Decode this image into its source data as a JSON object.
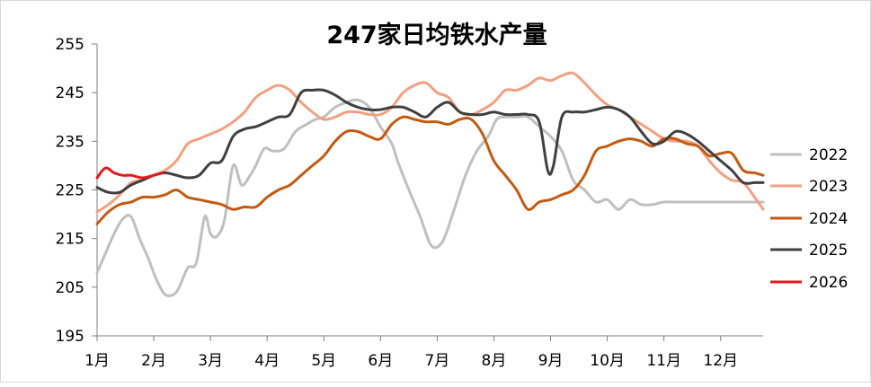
{
  "chart_data": {
    "type": "line",
    "title": "247家日均铁水产量",
    "xlabel": "",
    "ylabel": "",
    "ylim": [
      195,
      255
    ],
    "yticks": [
      195,
      205,
      215,
      225,
      235,
      245,
      255
    ],
    "xlim": [
      1,
      12.75
    ],
    "x_tick_values": [
      1,
      2,
      3,
      4,
      5,
      6,
      7,
      8,
      9,
      10,
      11,
      12
    ],
    "x_tick_labels": [
      "1月",
      "2月",
      "3月",
      "4月",
      "5月",
      "6月",
      "7月",
      "8月",
      "9月",
      "10月",
      "11月",
      "12月"
    ],
    "legend_position": "right",
    "grid": false,
    "series": [
      {
        "name": "2022",
        "color": "#bfbfbf",
        "x": [
          1.0,
          1.15,
          1.3,
          1.45,
          1.6,
          1.75,
          1.9,
          2.05,
          2.2,
          2.35,
          2.45,
          2.6,
          2.75,
          2.9,
          3.0,
          3.12,
          3.25,
          3.4,
          3.55,
          3.7,
          3.8,
          3.95,
          4.1,
          4.3,
          4.5,
          4.7,
          4.85,
          5.0,
          5.2,
          5.4,
          5.6,
          5.8,
          6.0,
          6.2,
          6.3,
          6.5,
          6.7,
          6.9,
          7.1,
          7.3,
          7.5,
          7.7,
          7.9,
          8.05,
          8.2,
          8.4,
          8.6,
          8.8,
          9.0,
          9.2,
          9.4,
          9.6,
          9.8,
          10.0,
          10.2,
          10.4,
          10.6,
          10.8,
          11.0,
          11.2,
          11.4,
          11.6,
          11.8,
          12.0,
          12.2,
          12.4,
          12.6,
          12.75
        ],
        "values": [
          208,
          212,
          216,
          219,
          219.5,
          215,
          211,
          206.5,
          203.5,
          203.5,
          205,
          209,
          210,
          219.5,
          216,
          215.5,
          219,
          230,
          226,
          228,
          230,
          233.5,
          233,
          233.5,
          237,
          238.5,
          239.5,
          240,
          242,
          243,
          243.5,
          242,
          238,
          234.5,
          231,
          225,
          219.5,
          213.5,
          214.5,
          221,
          228,
          233,
          236,
          239.5,
          240,
          240,
          240,
          238,
          236,
          233,
          227,
          225,
          222.5,
          223,
          221,
          223,
          222,
          222,
          222.5,
          222.5,
          222.5,
          222.5,
          222.5,
          222.5,
          222.5,
          222.5,
          222.5,
          222.5
        ]
      },
      {
        "name": "2023",
        "color": "#f4a080",
        "x": [
          1.0,
          1.2,
          1.4,
          1.6,
          1.8,
          2.0,
          2.2,
          2.4,
          2.6,
          2.8,
          3.0,
          3.2,
          3.4,
          3.6,
          3.8,
          4.0,
          4.2,
          4.4,
          4.6,
          4.8,
          5.0,
          5.2,
          5.4,
          5.6,
          5.8,
          6.0,
          6.2,
          6.4,
          6.6,
          6.8,
          7.0,
          7.2,
          7.4,
          7.6,
          7.8,
          8.0,
          8.2,
          8.4,
          8.6,
          8.8,
          9.0,
          9.2,
          9.4,
          9.6,
          9.8,
          10.0,
          10.2,
          10.4,
          10.6,
          10.8,
          11.0,
          11.2,
          11.4,
          11.6,
          11.8,
          12.0,
          12.2,
          12.4,
          12.6,
          12.75
        ],
        "values": [
          220.5,
          222,
          224,
          226.5,
          227,
          228,
          229,
          231,
          234.5,
          235.5,
          236.5,
          237.5,
          239,
          241,
          244,
          245.5,
          246.5,
          245.5,
          243,
          241,
          239.5,
          240,
          241,
          241,
          240.5,
          240.5,
          242,
          245,
          246.5,
          247,
          245,
          244,
          241,
          240.5,
          241.5,
          243,
          245.5,
          245.5,
          246.5,
          248,
          247.5,
          248.5,
          249,
          247,
          244.5,
          242.5,
          241.5,
          240,
          238.5,
          237,
          235.5,
          235,
          235,
          234,
          231,
          228.5,
          227,
          226.5,
          223.5,
          221
        ]
      },
      {
        "name": "2024",
        "color": "#c55a11",
        "x": [
          1.0,
          1.2,
          1.4,
          1.6,
          1.8,
          2.0,
          2.2,
          2.4,
          2.6,
          2.8,
          3.0,
          3.2,
          3.4,
          3.6,
          3.8,
          4.0,
          4.2,
          4.4,
          4.6,
          4.8,
          5.0,
          5.2,
          5.4,
          5.6,
          5.8,
          6.0,
          6.2,
          6.4,
          6.6,
          6.8,
          7.0,
          7.2,
          7.4,
          7.6,
          7.8,
          8.0,
          8.2,
          8.4,
          8.6,
          8.8,
          9.0,
          9.2,
          9.4,
          9.6,
          9.8,
          10.0,
          10.2,
          10.4,
          10.6,
          10.8,
          11.0,
          11.2,
          11.4,
          11.6,
          11.8,
          12.0,
          12.2,
          12.4,
          12.6,
          12.75
        ],
        "values": [
          218,
          220.5,
          222,
          222.5,
          223.5,
          223.5,
          224,
          225,
          223.5,
          223,
          222.5,
          222,
          221,
          221.5,
          221.5,
          223.5,
          225,
          226,
          228,
          230,
          232,
          235,
          237,
          237,
          236,
          235.5,
          238.5,
          240,
          239.5,
          239,
          239,
          238.5,
          239.5,
          239.5,
          236.5,
          231,
          228,
          225,
          221,
          222.5,
          223,
          224,
          225,
          228,
          233,
          234,
          235,
          235.5,
          235,
          234,
          235.5,
          235.5,
          234.5,
          234,
          232,
          232.5,
          232.5,
          229,
          228.5,
          228
        ]
      },
      {
        "name": "2025",
        "color": "#404040",
        "x": [
          1.0,
          1.2,
          1.4,
          1.6,
          1.8,
          2.0,
          2.2,
          2.4,
          2.6,
          2.8,
          3.0,
          3.2,
          3.4,
          3.6,
          3.8,
          4.0,
          4.2,
          4.4,
          4.6,
          4.8,
          5.0,
          5.2,
          5.4,
          5.6,
          5.8,
          6.0,
          6.2,
          6.4,
          6.6,
          6.8,
          7.0,
          7.2,
          7.4,
          7.6,
          7.8,
          8.0,
          8.2,
          8.4,
          8.6,
          8.8,
          8.95,
          9.05,
          9.2,
          9.4,
          9.6,
          9.8,
          10.0,
          10.2,
          10.4,
          10.6,
          10.8,
          11.0,
          11.2,
          11.4,
          11.6,
          11.8,
          12.0,
          12.2,
          12.4,
          12.6,
          12.75
        ],
        "values": [
          225.5,
          224.5,
          224.5,
          226,
          227,
          228,
          228.5,
          228,
          227.5,
          228,
          230.5,
          231,
          236,
          237.5,
          238,
          239,
          240,
          240.5,
          245,
          245.5,
          245.5,
          244.5,
          243,
          242,
          241.5,
          241.5,
          242,
          242,
          241,
          240,
          242,
          243,
          241,
          240.5,
          240.5,
          241,
          240.5,
          240.5,
          240.5,
          239,
          229,
          230,
          240,
          241,
          241,
          241.5,
          242,
          241.5,
          240,
          237,
          234.5,
          235,
          237,
          236.5,
          235,
          233,
          231,
          229,
          226.5,
          226.5,
          226.5
        ]
      },
      {
        "name": "2026",
        "color": "#e31a1c",
        "x": [
          1.0,
          1.15,
          1.3,
          1.45,
          1.6,
          1.8,
          2.0,
          2.15
        ],
        "values": [
          227.5,
          229.5,
          228.5,
          228,
          228,
          227.5,
          228,
          228.5
        ]
      }
    ]
  }
}
